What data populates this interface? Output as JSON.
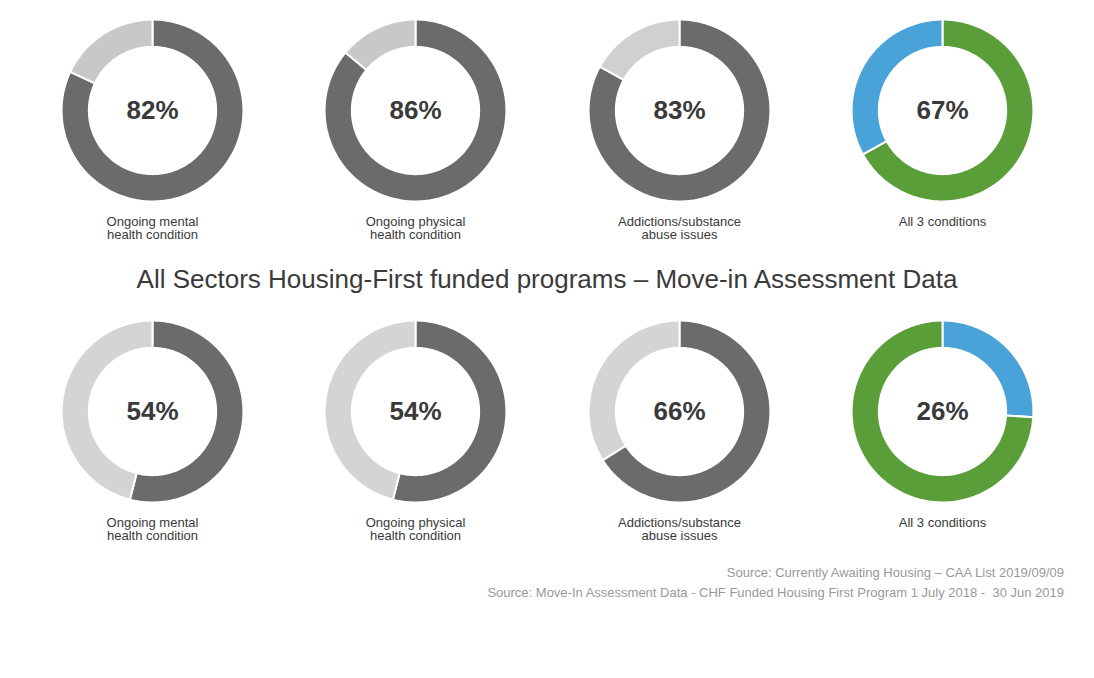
{
  "title": "All Sectors Housing-First funded programs – Move-in Assessment Data",
  "annotations": [
    "Source: Currently Awaiting Housing – CAA List 2019/09/09",
    "Source: Move-In Assessment Data - CHF Funded Housing First Program 1 July 2018 -  30 Jun 2019"
  ],
  "chart_data": [
    {
      "type": "pie",
      "title": "Ongoing mental\nhealth condition",
      "values": [
        82,
        18
      ],
      "value_labels": [
        "82%",
        null
      ],
      "data_labels": true,
      "colors": [
        "#6b6b6b",
        "#c8c8c8"
      ]
    },
    {
      "type": "pie",
      "title": "Ongoing physical\nhealth condition",
      "values": [
        86,
        14
      ],
      "value_labels": [
        "86%",
        null
      ],
      "data_labels": true,
      "colors": [
        "#6b6b6b",
        "#c8c8c8"
      ]
    },
    {
      "type": "pie",
      "title": "Addictions/substance\nabuse issues",
      "values": [
        83,
        17
      ],
      "value_labels": [
        "83%",
        null
      ],
      "data_labels": true,
      "colors": [
        "#6b6b6b",
        "#d0d0d0"
      ]
    },
    {
      "type": "pie",
      "title": "All 3 conditions",
      "values": [
        67,
        33
      ],
      "value_labels": [
        "67%",
        null
      ],
      "data_labels": true,
      "colors": [
        "#5a9e3a",
        "#4aa3d8"
      ]
    },
    {
      "type": "pie",
      "title": "Ongoing mental\nhealth condition",
      "values": [
        54,
        46
      ],
      "value_labels": [
        "54%",
        null
      ],
      "data_labels": true,
      "colors": [
        "#6b6b6b",
        "#d4d4d4"
      ]
    },
    {
      "type": "pie",
      "title": "Ongoing physical\nhealth condition",
      "values": [
        54,
        46
      ],
      "value_labels": [
        "54%",
        null
      ],
      "data_labels": true,
      "colors": [
        "#6b6b6b",
        "#d4d4d4"
      ]
    },
    {
      "type": "pie",
      "title": "Addictions/substance\nabuse issues",
      "values": [
        66,
        34
      ],
      "value_labels": [
        "66%",
        null
      ],
      "data_labels": true,
      "colors": [
        "#6b6b6b",
        "#d4d4d4"
      ]
    },
    {
      "type": "pie",
      "title": "All 3 conditions",
      "values": [
        26,
        74
      ],
      "value_labels": [
        "26%",
        null
      ],
      "data_labels": true,
      "colors": [
        "#4aa3d8",
        "#5a9e3a"
      ]
    }
  ]
}
